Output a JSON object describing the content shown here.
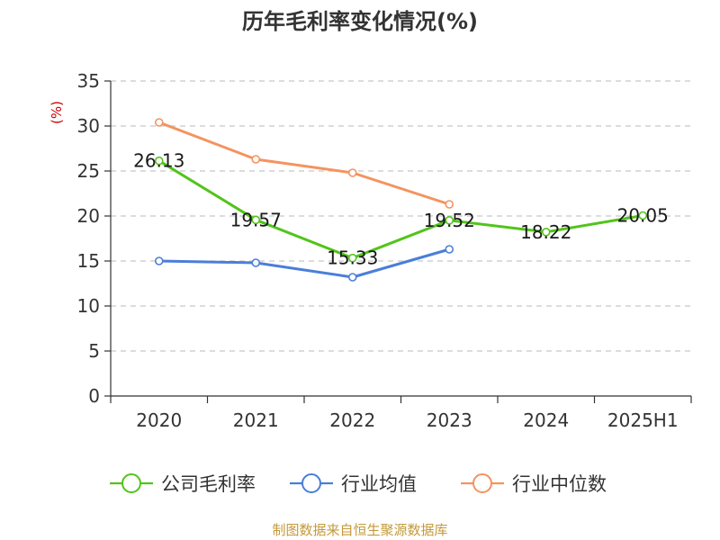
{
  "chart_data": {
    "type": "line",
    "title": "历年毛利率变化情况(%)",
    "y_unit_label": "(%)",
    "categories": [
      "2020",
      "2021",
      "2022",
      "2023",
      "2024",
      "2025H1"
    ],
    "ylim": [
      0,
      35
    ],
    "y_ticks": [
      "0",
      "5",
      "10",
      "15",
      "20",
      "25",
      "30",
      "35"
    ],
    "grid": true,
    "legend_position": "bottom",
    "series": [
      {
        "name": "公司毛利率",
        "color": "#52c41a",
        "values": [
          26.13,
          19.57,
          15.33,
          19.52,
          18.22,
          20.05
        ],
        "labels": [
          "26.13",
          "19.57",
          "15.33",
          "19.52",
          "18.22",
          "20.05"
        ]
      },
      {
        "name": "行业均值",
        "color": "#4a7ed9",
        "values": [
          15.0,
          14.8,
          13.2,
          16.3,
          null,
          null
        ],
        "labels": []
      },
      {
        "name": "行业中位数",
        "color": "#f4935f",
        "values": [
          30.4,
          26.3,
          24.8,
          21.3,
          null,
          null
        ],
        "labels": []
      }
    ],
    "source": "制图数据来自恒生聚源数据库"
  }
}
